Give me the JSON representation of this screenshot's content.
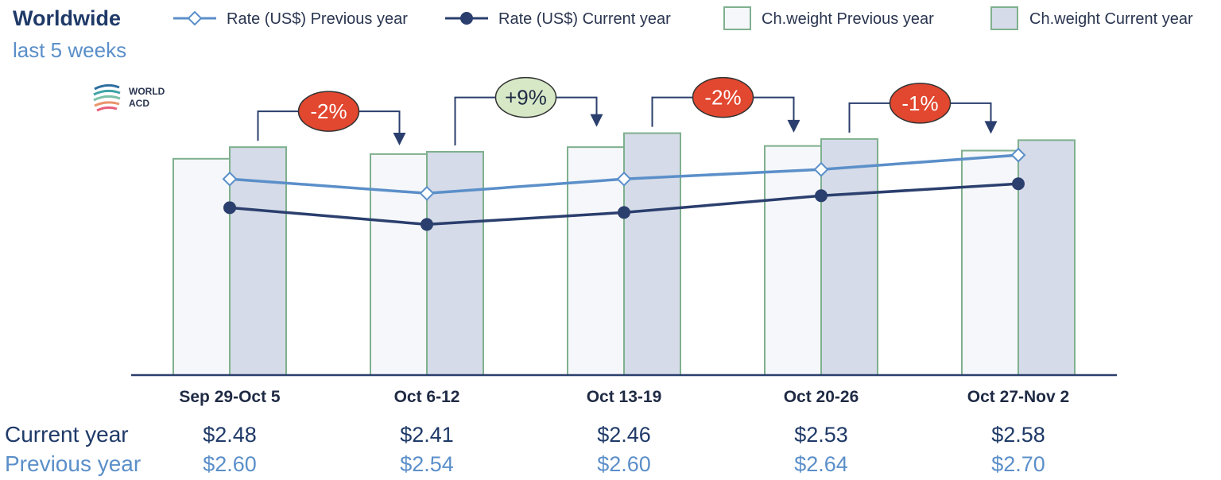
{
  "title": "Worldwide",
  "subtitle": "last 5 weeks",
  "logo": {
    "line1": "WORLD",
    "line2": "ACD"
  },
  "colors": {
    "rate_prev": "#5b8fc9",
    "rate_cur": "#2b3f6e",
    "bar_stroke": "#7fb08e",
    "bar_prev_fill": "#f5f7fa",
    "bar_cur_fill": "#d5dbe8",
    "pct_down": "#e2472f",
    "pct_up": "#d6e8c6",
    "axis": "#2b3f6e"
  },
  "chart_data": {
    "type": "bar",
    "categories": [
      "Sep 29-Oct 5",
      "Oct 6-12",
      "Oct 13-19",
      "Oct 20-26",
      "Oct 27-Nov 2"
    ],
    "legend": [
      {
        "name": "Rate (US$) Previous year",
        "kind": "line-diamond",
        "color": "#5b8fc9"
      },
      {
        "name": "Rate (US$) Current year",
        "kind": "line-dot",
        "color": "#2b3f6e"
      },
      {
        "name": "Ch.weight Previous year",
        "kind": "bar-prev"
      },
      {
        "name": "Ch.weight Current year",
        "kind": "bar-cur"
      }
    ],
    "bar_series": [
      {
        "name": "Ch.weight Previous year",
        "values": [
          0.93,
          0.95,
          0.98,
          0.985,
          0.965
        ]
      },
      {
        "name": "Ch.weight Current year",
        "values": [
          0.98,
          0.96,
          1.04,
          1.015,
          1.01
        ]
      }
    ],
    "bar_ylim": [
      0,
      1.1
    ],
    "line_series": [
      {
        "name": "Rate (US$) Previous year",
        "values": [
          2.6,
          2.54,
          2.6,
          2.64,
          2.7
        ]
      },
      {
        "name": "Rate (US$) Current year",
        "values": [
          2.48,
          2.41,
          2.46,
          2.53,
          2.58
        ]
      }
    ],
    "line_ylim": [
      1.78,
      2.85
    ],
    "changes": [
      {
        "label": "-2%",
        "direction": "down"
      },
      {
        "label": "+9%",
        "direction": "up"
      },
      {
        "label": "-2%",
        "direction": "down"
      },
      {
        "label": "-1%",
        "direction": "down"
      }
    ],
    "table": {
      "rows": [
        {
          "label": "Current year",
          "values": [
            "$2.48",
            "$2.41",
            "$2.46",
            "$2.53",
            "$2.58"
          ]
        },
        {
          "label": "Previous year",
          "values": [
            "$2.60",
            "$2.54",
            "$2.60",
            "$2.64",
            "$2.70"
          ]
        }
      ]
    },
    "grid": false,
    "legend_position": "top"
  }
}
